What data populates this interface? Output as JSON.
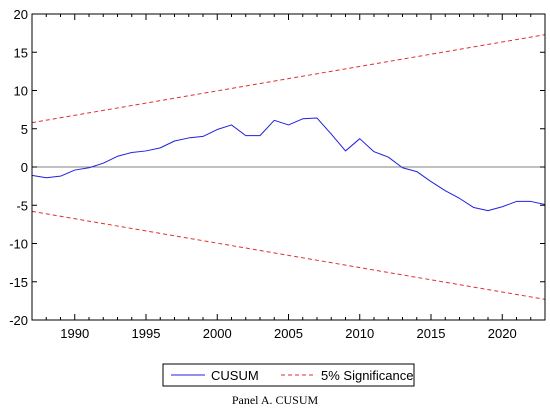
{
  "chart_data": {
    "type": "line",
    "title": "",
    "xlabel": "",
    "ylabel": "",
    "xlim": [
      1987,
      2023
    ],
    "ylim": [
      -20,
      20
    ],
    "x_ticks": [
      1990,
      1995,
      2000,
      2005,
      2010,
      2015,
      2020
    ],
    "y_ticks": [
      -20,
      -15,
      -10,
      -5,
      0,
      5,
      10,
      15,
      20
    ],
    "zero_line": true,
    "grid": false,
    "legend_position": "bottom-center",
    "series": [
      {
        "name": "CUSUM",
        "color": "#2020e0",
        "style": "solid",
        "points": [
          [
            1987,
            -1.1
          ],
          [
            1988,
            -1.4
          ],
          [
            1989,
            -1.2
          ],
          [
            1990,
            -0.4
          ],
          [
            1991,
            -0.1
          ],
          [
            1992,
            0.5
          ],
          [
            1993,
            1.4
          ],
          [
            1994,
            1.9
          ],
          [
            1995,
            2.1
          ],
          [
            1996,
            2.5
          ],
          [
            1997,
            3.4
          ],
          [
            1998,
            3.8
          ],
          [
            1999,
            4.0
          ],
          [
            2000,
            4.9
          ],
          [
            2001,
            5.5
          ],
          [
            2002,
            4.1
          ],
          [
            2003,
            4.1
          ],
          [
            2004,
            6.1
          ],
          [
            2005,
            5.5
          ],
          [
            2006,
            6.3
          ],
          [
            2007,
            6.4
          ],
          [
            2008,
            4.3
          ],
          [
            2009,
            2.1
          ],
          [
            2010,
            3.7
          ],
          [
            2011,
            2.0
          ],
          [
            2012,
            1.3
          ],
          [
            2013,
            -0.1
          ],
          [
            2014,
            -0.6
          ],
          [
            2015,
            -1.9
          ],
          [
            2016,
            -3.1
          ],
          [
            2017,
            -4.1
          ],
          [
            2018,
            -5.3
          ],
          [
            2019,
            -5.7
          ],
          [
            2020,
            -5.2
          ],
          [
            2021,
            -4.5
          ],
          [
            2022,
            -4.5
          ],
          [
            2023,
            -4.9
          ]
        ]
      },
      {
        "name": "5% Significance",
        "color": "#e03030",
        "style": "dashed",
        "points": [
          [
            1987,
            5.8
          ],
          [
            2023,
            17.3
          ]
        ]
      },
      {
        "name": "5% Significance",
        "color": "#e03030",
        "style": "dashed",
        "show_in_legend": false,
        "points": [
          [
            1987,
            -5.8
          ],
          [
            2023,
            -17.3
          ]
        ]
      }
    ],
    "legend": [
      {
        "label": "CUSUM",
        "color": "#2020e0",
        "style": "solid"
      },
      {
        "label": "5% Significance",
        "color": "#e03030",
        "style": "dashed"
      }
    ],
    "caption": "Panel A. CUSUM"
  }
}
